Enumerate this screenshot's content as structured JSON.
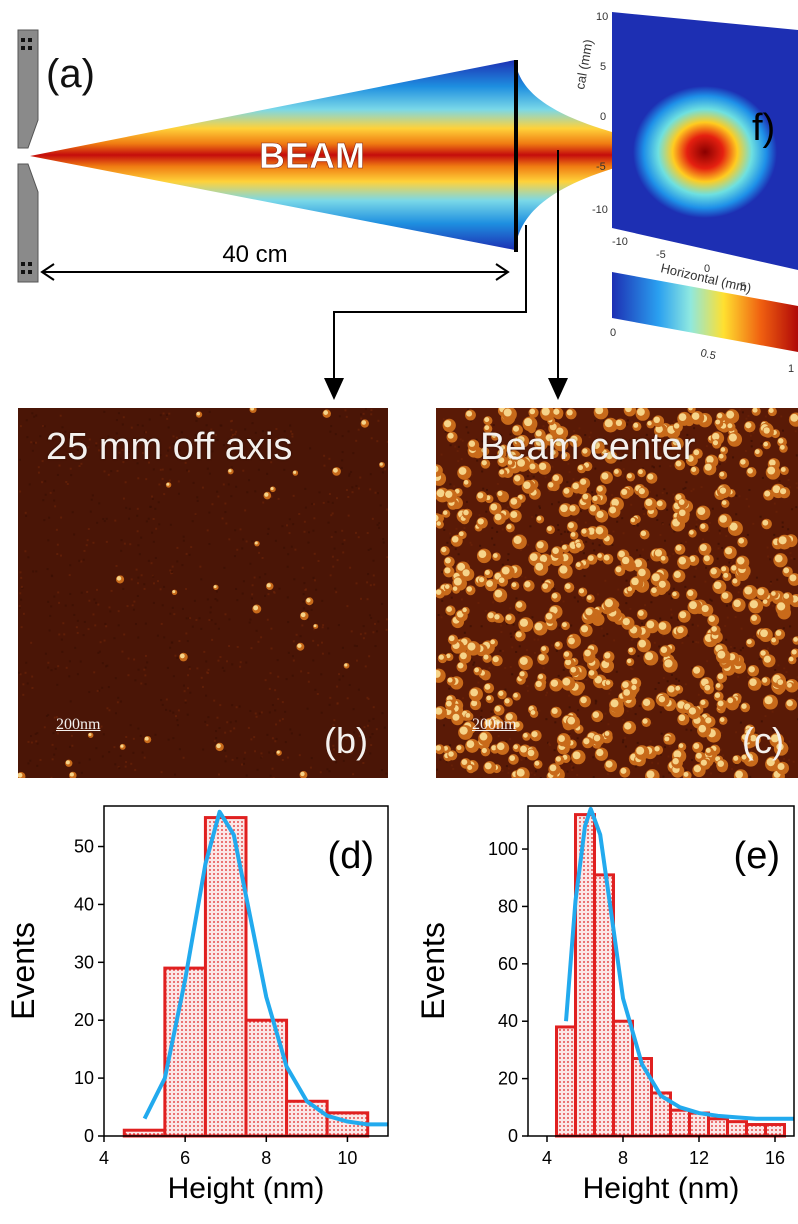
{
  "figure": {
    "panel_a": {
      "letter": "(a)",
      "beam_label": "BEAM",
      "distance_label": "40 cm"
    },
    "panel_f": {
      "letter": "f)",
      "y_axis_label": "cal (mm)",
      "x_axis_label": "Horizontal (mm)",
      "y_ticks": [
        "10",
        "5",
        "0",
        "-5",
        "-10"
      ],
      "x_ticks": [
        "-10",
        "-5",
        "0",
        "5",
        "10"
      ],
      "colorbar_ticks": [
        "0",
        "0.5",
        "1"
      ]
    },
    "panel_b": {
      "title": "25 mm off axis",
      "letter": "(b)",
      "scale_bar": "200nm"
    },
    "panel_c": {
      "title": "Beam center",
      "letter": "(c)",
      "scale_bar": "200nm"
    }
  },
  "chart_data": [
    {
      "type": "bar",
      "panel": "(d)",
      "xlabel": "Height (nm)",
      "ylabel": "Events",
      "xlim": [
        4,
        11
      ],
      "ylim": [
        0,
        57
      ],
      "x_ticks": [
        4,
        6,
        8,
        10
      ],
      "y_ticks": [
        0,
        10,
        20,
        30,
        40,
        50
      ],
      "bin_width": 1,
      "bins": [
        {
          "x": 5,
          "value": 1
        },
        {
          "x": 6,
          "value": 29
        },
        {
          "x": 7,
          "value": 55
        },
        {
          "x": 8,
          "value": 20
        },
        {
          "x": 9,
          "value": 6
        },
        {
          "x": 10,
          "value": 4
        }
      ],
      "fit_curve": {
        "x": [
          5.0,
          5.5,
          6.0,
          6.5,
          6.85,
          7.2,
          7.6,
          8.0,
          8.5,
          9.0,
          9.5,
          10.0,
          10.5,
          11.0
        ],
        "y": [
          3,
          10,
          27,
          47,
          56,
          52,
          38,
          24,
          12,
          6,
          3.5,
          2.5,
          2,
          2
        ]
      },
      "colors": {
        "bars": "#e02020",
        "fit": "#22aaee"
      }
    },
    {
      "type": "bar",
      "panel": "(e)",
      "xlabel": "Height (nm)",
      "ylabel": "Events",
      "xlim": [
        3,
        17
      ],
      "ylim": [
        0,
        115
      ],
      "x_ticks": [
        4,
        8,
        12,
        16
      ],
      "y_ticks": [
        0,
        20,
        40,
        60,
        80,
        100
      ],
      "bin_width": 1,
      "bins": [
        {
          "x": 5,
          "value": 38
        },
        {
          "x": 6,
          "value": 112
        },
        {
          "x": 7,
          "value": 91
        },
        {
          "x": 8,
          "value": 40
        },
        {
          "x": 9,
          "value": 27
        },
        {
          "x": 10,
          "value": 15
        },
        {
          "x": 11,
          "value": 9
        },
        {
          "x": 12,
          "value": 8
        },
        {
          "x": 13,
          "value": 6
        },
        {
          "x": 14,
          "value": 5
        },
        {
          "x": 15,
          "value": 4
        },
        {
          "x": 16,
          "value": 4
        }
      ],
      "fit_curve": {
        "x": [
          5.0,
          5.5,
          6.0,
          6.3,
          6.8,
          7.5,
          8.0,
          9.0,
          10.0,
          11.0,
          12.0,
          13.0,
          14.0,
          15.0,
          16.0,
          17.0
        ],
        "y": [
          40,
          82,
          108,
          114,
          105,
          72,
          48,
          25,
          14,
          10,
          8,
          7,
          6.5,
          6,
          6,
          6
        ]
      },
      "colors": {
        "bars": "#e02020",
        "fit": "#22aaee"
      }
    }
  ]
}
